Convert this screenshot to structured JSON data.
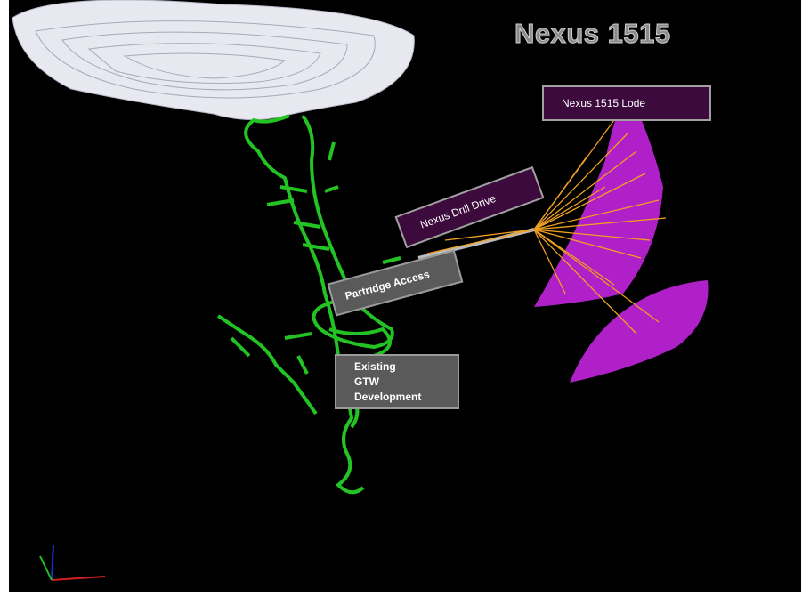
{
  "title": "Nexus 1515",
  "labels": {
    "lode": "Nexus 1515 Lode",
    "drill_drive": "Nexus Drill Drive",
    "partridge": "Partridge Access",
    "existing": "Existing GTW Development"
  }
}
